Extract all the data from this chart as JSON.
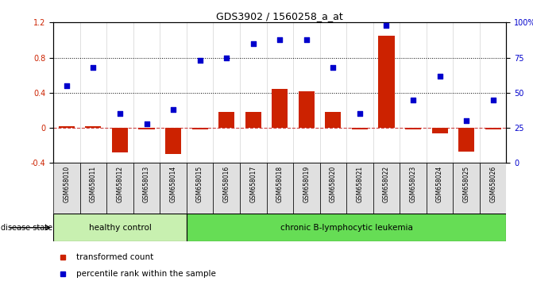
{
  "title": "GDS3902 / 1560258_a_at",
  "samples": [
    "GSM658010",
    "GSM658011",
    "GSM658012",
    "GSM658013",
    "GSM658014",
    "GSM658015",
    "GSM658016",
    "GSM658017",
    "GSM658018",
    "GSM658019",
    "GSM658020",
    "GSM658021",
    "GSM658022",
    "GSM658023",
    "GSM658024",
    "GSM658025",
    "GSM658026"
  ],
  "transformed_count": [
    0.02,
    0.02,
    -0.28,
    -0.02,
    -0.3,
    -0.02,
    0.18,
    0.18,
    0.44,
    0.42,
    0.18,
    -0.02,
    1.05,
    -0.02,
    -0.06,
    -0.27,
    -0.02
  ],
  "percentile_rank": [
    55,
    68,
    35,
    28,
    38,
    73,
    75,
    85,
    88,
    88,
    68,
    35,
    98,
    45,
    62,
    30,
    45
  ],
  "healthy_control_count": 5,
  "group_labels": [
    "healthy control",
    "chronic B-lymphocytic leukemia"
  ],
  "healthy_color": "#c8f0b0",
  "leukemia_color": "#66dd55",
  "bar_color": "#cc2200",
  "dot_color": "#0000cc",
  "zero_line_color": "#cc4444",
  "ylim_left": [
    -0.4,
    1.2
  ],
  "ylim_right": [
    0,
    100
  ],
  "yticks_left": [
    -0.4,
    0.0,
    0.4,
    0.8,
    1.2
  ],
  "ytick_labels_left": [
    "-0.4",
    "0",
    "0.4",
    "0.8",
    "1.2"
  ],
  "yticks_right": [
    0,
    25,
    50,
    75,
    100
  ],
  "ytick_labels_right": [
    "0",
    "25",
    "50",
    "75",
    "100%"
  ],
  "hlines": [
    0.4,
    0.8
  ],
  "disease_state_label": "disease state",
  "legend_red": "transformed count",
  "legend_blue": "percentile rank within the sample"
}
